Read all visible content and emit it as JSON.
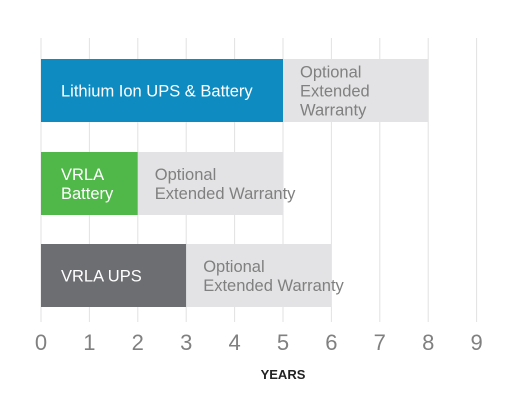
{
  "chart_data": {
    "type": "bar",
    "orientation": "horizontal",
    "stacked": true,
    "xlabel": "YEARS",
    "xlim": [
      0,
      9
    ],
    "x_ticks": [
      "0",
      "1",
      "2",
      "3",
      "4",
      "5",
      "6",
      "7",
      "8",
      "9"
    ],
    "grid": "vertical",
    "bars": [
      {
        "segments": [
          {
            "label": [
              "Lithium Ion UPS & Battery"
            ],
            "start": 0,
            "end": 5,
            "color": "#0E8CC1",
            "text_color": "#ffffff"
          },
          {
            "label": [
              "Optional",
              "Extended",
              "Warranty"
            ],
            "start": 5,
            "end": 8,
            "color": "#E3E3E5",
            "text_color": "#808080"
          }
        ]
      },
      {
        "segments": [
          {
            "label": [
              "VRLA",
              "Battery"
            ],
            "start": 0,
            "end": 2,
            "color": "#4FB848",
            "text_color": "#ffffff"
          },
          {
            "label": [
              "Optional",
              "Extended Warranty"
            ],
            "start": 2,
            "end": 5,
            "color": "#E3E3E5",
            "text_color": "#808080"
          }
        ]
      },
      {
        "segments": [
          {
            "label": [
              "VRLA  UPS"
            ],
            "start": 0,
            "end": 3,
            "color": "#6D6E72",
            "text_color": "#ffffff"
          },
          {
            "label": [
              "Optional",
              "Extended Warranty"
            ],
            "start": 3,
            "end": 6,
            "color": "#E3E3E5",
            "text_color": "#808080"
          }
        ]
      }
    ]
  }
}
